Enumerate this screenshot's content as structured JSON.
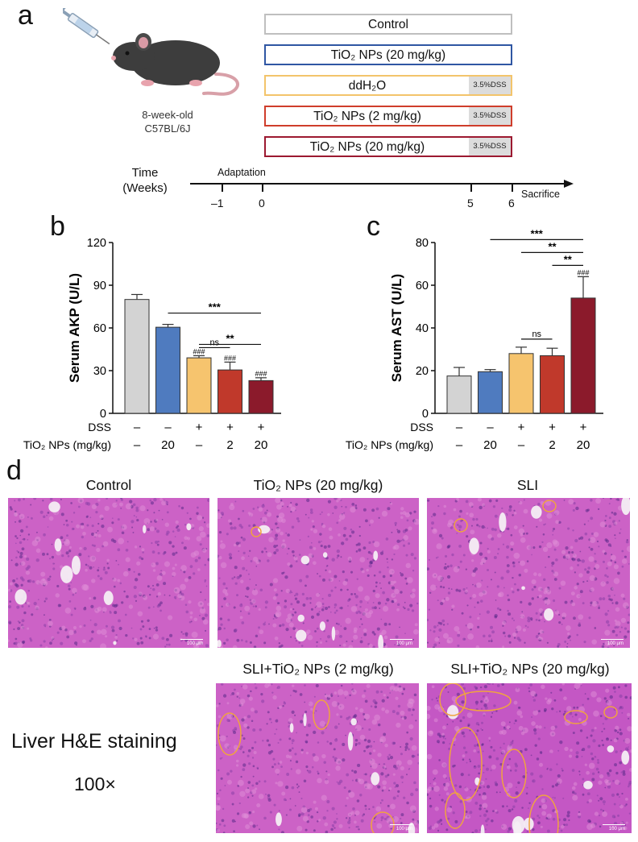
{
  "panels": {
    "a": "a",
    "b": "b",
    "c": "c",
    "d": "d"
  },
  "panel_a": {
    "mouse_caption": [
      "8-week-old",
      "C57BL/6J"
    ],
    "groups": [
      {
        "label": "Control",
        "dss": ""
      },
      {
        "label": "TiO₂ NPs (20 mg/kg)",
        "dss": ""
      },
      {
        "label": "ddH₂O",
        "dss": "3.5%DSS"
      },
      {
        "label": "TiO₂ NPs (2 mg/kg)",
        "dss": "3.5%DSS"
      },
      {
        "label": "TiO₂ NPs (20 mg/kg)",
        "dss": "3.5%DSS"
      }
    ],
    "group_colors": [
      "#bfbfbf",
      "#2f56a3",
      "#f3c46b",
      "#cf3d2b",
      "#9c1930"
    ],
    "timeline": {
      "axis_label": [
        "Time",
        "(Weeks)"
      ],
      "adaptation": "Adaptation",
      "sacrifice": "Sacrifice",
      "ticks": [
        "–1",
        "0",
        "5",
        "6"
      ]
    }
  },
  "chart_data": [
    {
      "type": "bar",
      "panel": "b",
      "ylabel": "Serum AKP (U/L)",
      "ylim": [
        0,
        120
      ],
      "yticks": [
        "0",
        "30",
        "60",
        "90",
        "120"
      ],
      "values": [
        80,
        60.5,
        39,
        30.5,
        23
      ],
      "errors": [
        3.5,
        2,
        1.5,
        5.5,
        2
      ],
      "bar_colors": [
        "#d3d3d3",
        "#4f7bbf",
        "#f6c46e",
        "#c0392b",
        "#8b1a2b"
      ],
      "bar_marks": [
        "",
        "",
        "###",
        "###",
        "###"
      ],
      "dss_row": [
        "–",
        "–",
        "+",
        "+",
        "+"
      ],
      "tio2_row": [
        "–",
        "20",
        "–",
        "2",
        "20"
      ],
      "dss_label": "DSS",
      "tio2_label": "TiO₂ NPs (mg/kg)",
      "brackets": [
        {
          "from": 1,
          "to": 4,
          "label": "***"
        },
        {
          "from": 2,
          "to": 4,
          "label": "**"
        },
        {
          "from": 2,
          "to": 3,
          "label": "ns"
        }
      ]
    },
    {
      "type": "bar",
      "panel": "c",
      "ylabel": "Serum AST (U/L)",
      "ylim": [
        0,
        80
      ],
      "yticks": [
        "0",
        "20",
        "40",
        "60",
        "80"
      ],
      "values": [
        17.5,
        19.5,
        28,
        27,
        54
      ],
      "errors": [
        4,
        1,
        3,
        3.5,
        10
      ],
      "bar_colors": [
        "#d3d3d3",
        "#4f7bbf",
        "#f6c46e",
        "#c0392b",
        "#8b1a2b"
      ],
      "bar_marks": [
        "",
        "",
        "",
        "",
        "###"
      ],
      "dss_row": [
        "–",
        "–",
        "+",
        "+",
        "+"
      ],
      "tio2_row": [
        "–",
        "20",
        "–",
        "2",
        "20"
      ],
      "dss_label": "DSS",
      "tio2_label": "TiO₂ NPs (mg/kg)",
      "brackets": [
        {
          "from": 1,
          "to": 4,
          "label": "***"
        },
        {
          "from": 2,
          "to": 4,
          "label": "**"
        },
        {
          "from": 3,
          "to": 4,
          "label": "**"
        },
        {
          "from": 2,
          "to": 3,
          "label": "ns"
        }
      ]
    }
  ],
  "panel_d": {
    "titles": [
      "Control",
      "TiO₂ NPs (20 mg/kg)",
      "SLI",
      "SLI+TiO₂ NPs (2 mg/kg)",
      "SLI+TiO₂ NPs (20 mg/kg)"
    ],
    "side_label": "Liver H&E staining",
    "magnification": "100×",
    "scale_bar": "100 μm"
  }
}
